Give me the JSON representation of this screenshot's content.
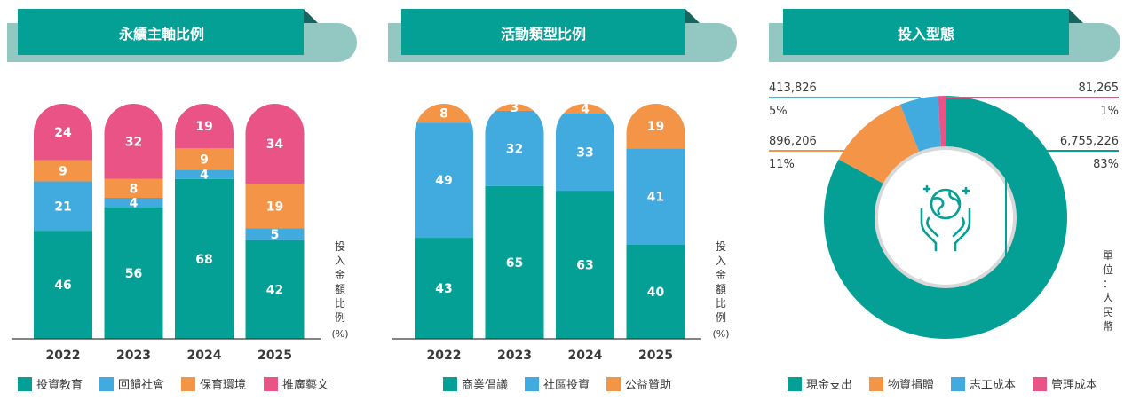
{
  "colors": {
    "teal": "#05a095",
    "blue": "#41aadf",
    "orange": "#f49447",
    "pink": "#e95385",
    "banner_light": "#93c8c2",
    "banner_dark": "#15665e",
    "axis_text": "#3a3a3a"
  },
  "panels": [
    {
      "title": "永續主軸比例"
    },
    {
      "title": "活動類型比例"
    },
    {
      "title": "投入型態"
    }
  ],
  "axis_note": {
    "chars": [
      "投",
      "入",
      "金",
      "額",
      "比",
      "例"
    ],
    "unit": "(%)"
  },
  "unit_note": {
    "chars": [
      "單",
      "位",
      "：",
      "人",
      "民",
      "幣"
    ]
  },
  "chart_data": [
    {
      "type": "bar",
      "stacked": true,
      "title": "永續主軸比例",
      "categories": [
        "2022",
        "2023",
        "2024",
        "2025"
      ],
      "ylabel": "投入金額比例(%)",
      "ylim": [
        0,
        100
      ],
      "series": [
        {
          "name": "投資教育",
          "color": "#05a095",
          "values": [
            46,
            56,
            68,
            42
          ]
        },
        {
          "name": "回饋社會",
          "color": "#41aadf",
          "values": [
            21,
            4,
            4,
            5
          ]
        },
        {
          "name": "保育環境",
          "color": "#f49447",
          "values": [
            9,
            8,
            9,
            19
          ]
        },
        {
          "name": "推廣藝文",
          "color": "#e95385",
          "values": [
            24,
            32,
            19,
            34
          ]
        }
      ],
      "legend_position": "bottom"
    },
    {
      "type": "bar",
      "stacked": true,
      "title": "活動類型比例",
      "categories": [
        "2022",
        "2023",
        "2024",
        "2025"
      ],
      "ylabel": "投入金額比例(%)",
      "ylim": [
        0,
        100
      ],
      "series": [
        {
          "name": "商業倡議",
          "color": "#05a095",
          "values": [
            43,
            65,
            63,
            40
          ]
        },
        {
          "name": "社區投資",
          "color": "#41aadf",
          "values": [
            49,
            32,
            33,
            41
          ]
        },
        {
          "name": "公益贊助",
          "color": "#f49447",
          "values": [
            8,
            3,
            4,
            19
          ]
        }
      ],
      "legend_position": "bottom"
    },
    {
      "type": "pie",
      "donut": true,
      "title": "投入型態",
      "unit": "單位：人民幣",
      "slices": [
        {
          "name": "現金支出",
          "color": "#05a095",
          "value": 6755226,
          "label": "6,755,226",
          "pct": "83%"
        },
        {
          "name": "物資捐贈",
          "color": "#f49447",
          "value": 896206,
          "label": "896,206",
          "pct": "11%"
        },
        {
          "name": "志工成本",
          "color": "#41aadf",
          "value": 413826,
          "label": "413,826",
          "pct": "5%"
        },
        {
          "name": "管理成本",
          "color": "#e95385",
          "value": 81265,
          "label": "81,265",
          "pct": "1%"
        }
      ],
      "legend_position": "bottom"
    }
  ]
}
